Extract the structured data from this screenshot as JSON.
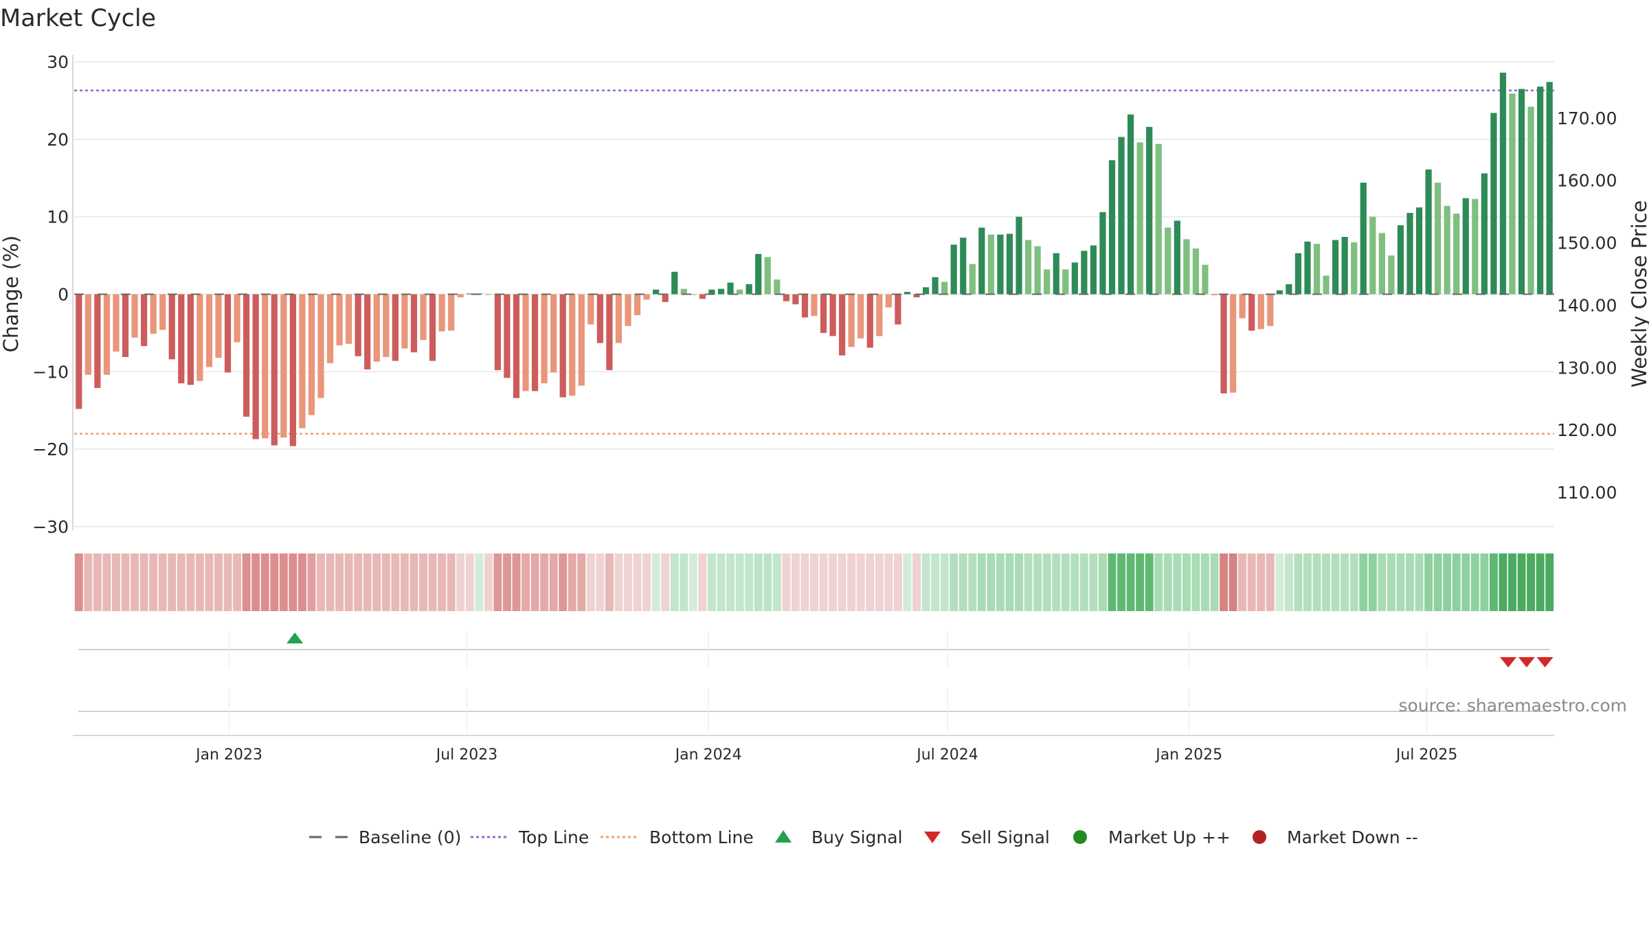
{
  "chart_data": {
    "type": "bar",
    "title": "Market Cycle",
    "ylabel": "Change (%)",
    "y2label": "Weekly Close Price",
    "ylim": [
      -30,
      30
    ],
    "y2lim": [
      104.5,
      179
    ],
    "yticks": [
      -30,
      -20,
      -10,
      0,
      10,
      20,
      30
    ],
    "y2ticks": [
      "110.00",
      "120.00",
      "130.00",
      "140.00",
      "150.00",
      "160.00",
      "170.00"
    ],
    "x_start": "2022-09-05",
    "x_end": "2025-10-06",
    "xticks": [
      {
        "date": "2023-01-01",
        "label": "Jan 2023"
      },
      {
        "date": "2023-07-01",
        "label": "Jul 2023"
      },
      {
        "date": "2024-01-01",
        "label": "Jan 2024"
      },
      {
        "date": "2024-07-01",
        "label": "Jul 2024"
      },
      {
        "date": "2025-01-01",
        "label": "Jan 2025"
      },
      {
        "date": "2025-07-01",
        "label": "Jul 2025"
      }
    ],
    "weekly_change": [
      -14.8,
      -10.4,
      -12.1,
      -10.4,
      -7.4,
      -8.1,
      -5.6,
      -6.7,
      -5.1,
      -4.6,
      -8.4,
      -11.5,
      -11.7,
      -11.2,
      -9.4,
      -8.2,
      -10.1,
      -6.2,
      -15.8,
      -18.7,
      -18.6,
      -19.5,
      -18.5,
      -19.6,
      -17.3,
      -15.6,
      -13.4,
      -8.9,
      -6.6,
      -6.4,
      -8.0,
      -9.7,
      -8.7,
      -8.1,
      -8.6,
      -7.0,
      -7.5,
      -5.9,
      -8.6,
      -4.8,
      -4.7,
      -0.4,
      0.1,
      0.1,
      0.0,
      -9.8,
      -10.8,
      -13.4,
      -12.5,
      -12.5,
      -11.5,
      -10.1,
      -13.3,
      -13.1,
      -11.8,
      -3.9,
      -6.3,
      -9.8,
      -6.3,
      -4.1,
      -2.7,
      -0.7,
      0.6,
      -1.0,
      2.9,
      0.7,
      0.0,
      -0.6,
      0.6,
      0.7,
      1.5,
      0.6,
      1.3,
      5.2,
      4.8,
      1.9,
      -0.9,
      -1.3,
      -3.0,
      -2.8,
      -5.0,
      -5.4,
      -7.9,
      -6.8,
      -5.7,
      -6.9,
      -5.4,
      -1.7,
      -3.9,
      0.3,
      -0.4,
      0.9,
      2.2,
      1.6,
      6.4,
      7.3,
      3.9,
      8.6,
      7.7,
      7.7,
      7.8,
      10.0,
      7.0,
      6.2,
      3.2,
      5.3,
      3.2,
      4.1,
      5.6,
      6.3,
      10.6,
      17.3,
      20.3,
      23.2,
      19.6,
      21.6,
      19.4,
      8.6,
      9.5,
      7.1,
      5.9,
      3.8,
      -0.1,
      -12.8,
      -12.7,
      -3.1,
      -4.7,
      -4.5,
      -4.1,
      0.5,
      1.3,
      5.3,
      6.8,
      6.5,
      2.4,
      7.0,
      7.4,
      6.7,
      14.4,
      10.0,
      7.9,
      5.0,
      8.9,
      10.5,
      11.2,
      16.1,
      14.4,
      11.4,
      10.4,
      12.4,
      12.3,
      15.6,
      23.4,
      28.6,
      25.9,
      26.5,
      24.2,
      26.8,
      27.4
    ],
    "intensity_colors": [
      "#dc8f8e",
      "#e7b8b6",
      "#e7b8b6",
      "#e7b8b6",
      "#e7b8b6",
      "#e7b8b6",
      "#e7b8b6",
      "#e7b8b6",
      "#e7b8b6",
      "#e7b8b6",
      "#e7b8b6",
      "#e7b8b6",
      "#e7b8b6",
      "#e7b8b6",
      "#e7b8b6",
      "#e7b8b6",
      "#e7b8b6",
      "#e7b8b6",
      "#dc8f8e",
      "#dc8f8e",
      "#dc8f8e",
      "#dc8f8e",
      "#dc8f8e",
      "#dc8f8e",
      "#dc8f8e",
      "#e0a09f",
      "#e7b8b6",
      "#e7b8b6",
      "#e7b8b6",
      "#e7b8b6",
      "#e7b8b6",
      "#e7b8b6",
      "#e7b8b6",
      "#e7b8b6",
      "#e7b8b6",
      "#e7b8b6",
      "#e7b8b6",
      "#e7b8b6",
      "#e7b8b6",
      "#e7b8b6",
      "#e7b8b6",
      "#efd2d2",
      "#efd2d2",
      "#d3ecd9",
      "#efd2d2",
      "#dc9796",
      "#dc9796",
      "#dc9796",
      "#e3aaa8",
      "#e3aaa8",
      "#e3aaa8",
      "#e3aaa8",
      "#dc9796",
      "#e3aaa8",
      "#e3aaa8",
      "#efd2d2",
      "#efd2d2",
      "#e7b8b6",
      "#efd2d2",
      "#efd2d2",
      "#efd2d2",
      "#efd2d2",
      "#d3ecd9",
      "#efd2d2",
      "#c2e5cb",
      "#c2e5cb",
      "#d3ecd9",
      "#efd2d2",
      "#c2e5cb",
      "#c2e5cb",
      "#c2e5cb",
      "#c2e5cb",
      "#c2e5cb",
      "#bde3c7",
      "#bde3c7",
      "#c2e5cb",
      "#efd2d2",
      "#efd2d2",
      "#efd2d2",
      "#efd2d2",
      "#efd2d2",
      "#efd2d2",
      "#efd2d2",
      "#efd2d2",
      "#efd2d2",
      "#efd2d2",
      "#efd2d2",
      "#efd2d2",
      "#efd2d2",
      "#d3ecd9",
      "#efd2d2",
      "#c2e5cb",
      "#c2e5cb",
      "#c2e5cb",
      "#b3dfbe",
      "#b3dfbe",
      "#b3dfbe",
      "#a9dbb5",
      "#a9dbb5",
      "#a9dbb5",
      "#a9dbb5",
      "#a9dbb5",
      "#b3dfbe",
      "#b3dfbe",
      "#b3dfbe",
      "#b3dfbe",
      "#b3dfbe",
      "#b3dfbe",
      "#b3dfbe",
      "#b3dfbe",
      "#a9dbb5",
      "#5fb872",
      "#5fb872",
      "#5fb872",
      "#5fb872",
      "#5fb872",
      "#a9dbb5",
      "#a9dbb5",
      "#a9dbb5",
      "#a9dbb5",
      "#a9dbb5",
      "#a9dbb5",
      "#a9dbb5",
      "#d68483",
      "#d68483",
      "#e7b8b6",
      "#e7b8b6",
      "#e7b8b6",
      "#e7b8b6",
      "#d3ecd9",
      "#c2e5cb",
      "#b3dfbe",
      "#b3dfbe",
      "#b3dfbe",
      "#b3dfbe",
      "#b3dfbe",
      "#b3dfbe",
      "#b3dfbe",
      "#8fd0a0",
      "#8fd0a0",
      "#a9dbb5",
      "#a9dbb5",
      "#a9dbb5",
      "#a9dbb5",
      "#a9dbb5",
      "#8fd0a0",
      "#8fd0a0",
      "#8fd0a0",
      "#8fd0a0",
      "#8fd0a0",
      "#8fd0a0",
      "#8fd0a0",
      "#5fb872",
      "#4caa61",
      "#4caa61",
      "#4caa61",
      "#4caa61",
      "#4caa61",
      "#4caa61"
    ],
    "top_line": {
      "value": 26.3,
      "name": "Top Line",
      "color": "#9a63c8"
    },
    "bottom_line": {
      "value": -18.0,
      "name": "Bottom Line",
      "color": "#f2a066"
    },
    "baseline": {
      "value": 0,
      "name": "Baseline (0)",
      "color": "#666666"
    },
    "buy_signals": [
      "2023-02-20"
    ],
    "sell_signals": [
      "2025-09-01",
      "2025-09-15",
      "2025-09-29"
    ],
    "source": "source: sharemaestro.com"
  },
  "colors": {
    "up_strong": "#2e8b57",
    "up_weak": "#7fbf7f",
    "down_strong": "#cd5c5c",
    "down_weak": "#e9967a",
    "grid": "#e6e6e6",
    "buy": "#22a152",
    "sell": "#d62728",
    "market_up": "#228b22",
    "market_down": "#b22222"
  },
  "legend": [
    {
      "key": "baseline",
      "label": "Baseline (0)",
      "icon": "dash-line-icon"
    },
    {
      "key": "top",
      "label": "Top Line",
      "icon": "dotted-line-icon"
    },
    {
      "key": "bottom",
      "label": "Bottom Line",
      "icon": "dotted-line-icon"
    },
    {
      "key": "buy",
      "label": "Buy Signal",
      "icon": "triangle-up-icon"
    },
    {
      "key": "sell",
      "label": "Sell Signal",
      "icon": "triangle-down-icon"
    },
    {
      "key": "up",
      "label": "Market Up ++",
      "icon": "circle-icon"
    },
    {
      "key": "down",
      "label": "Market Down --",
      "icon": "circle-icon"
    }
  ]
}
